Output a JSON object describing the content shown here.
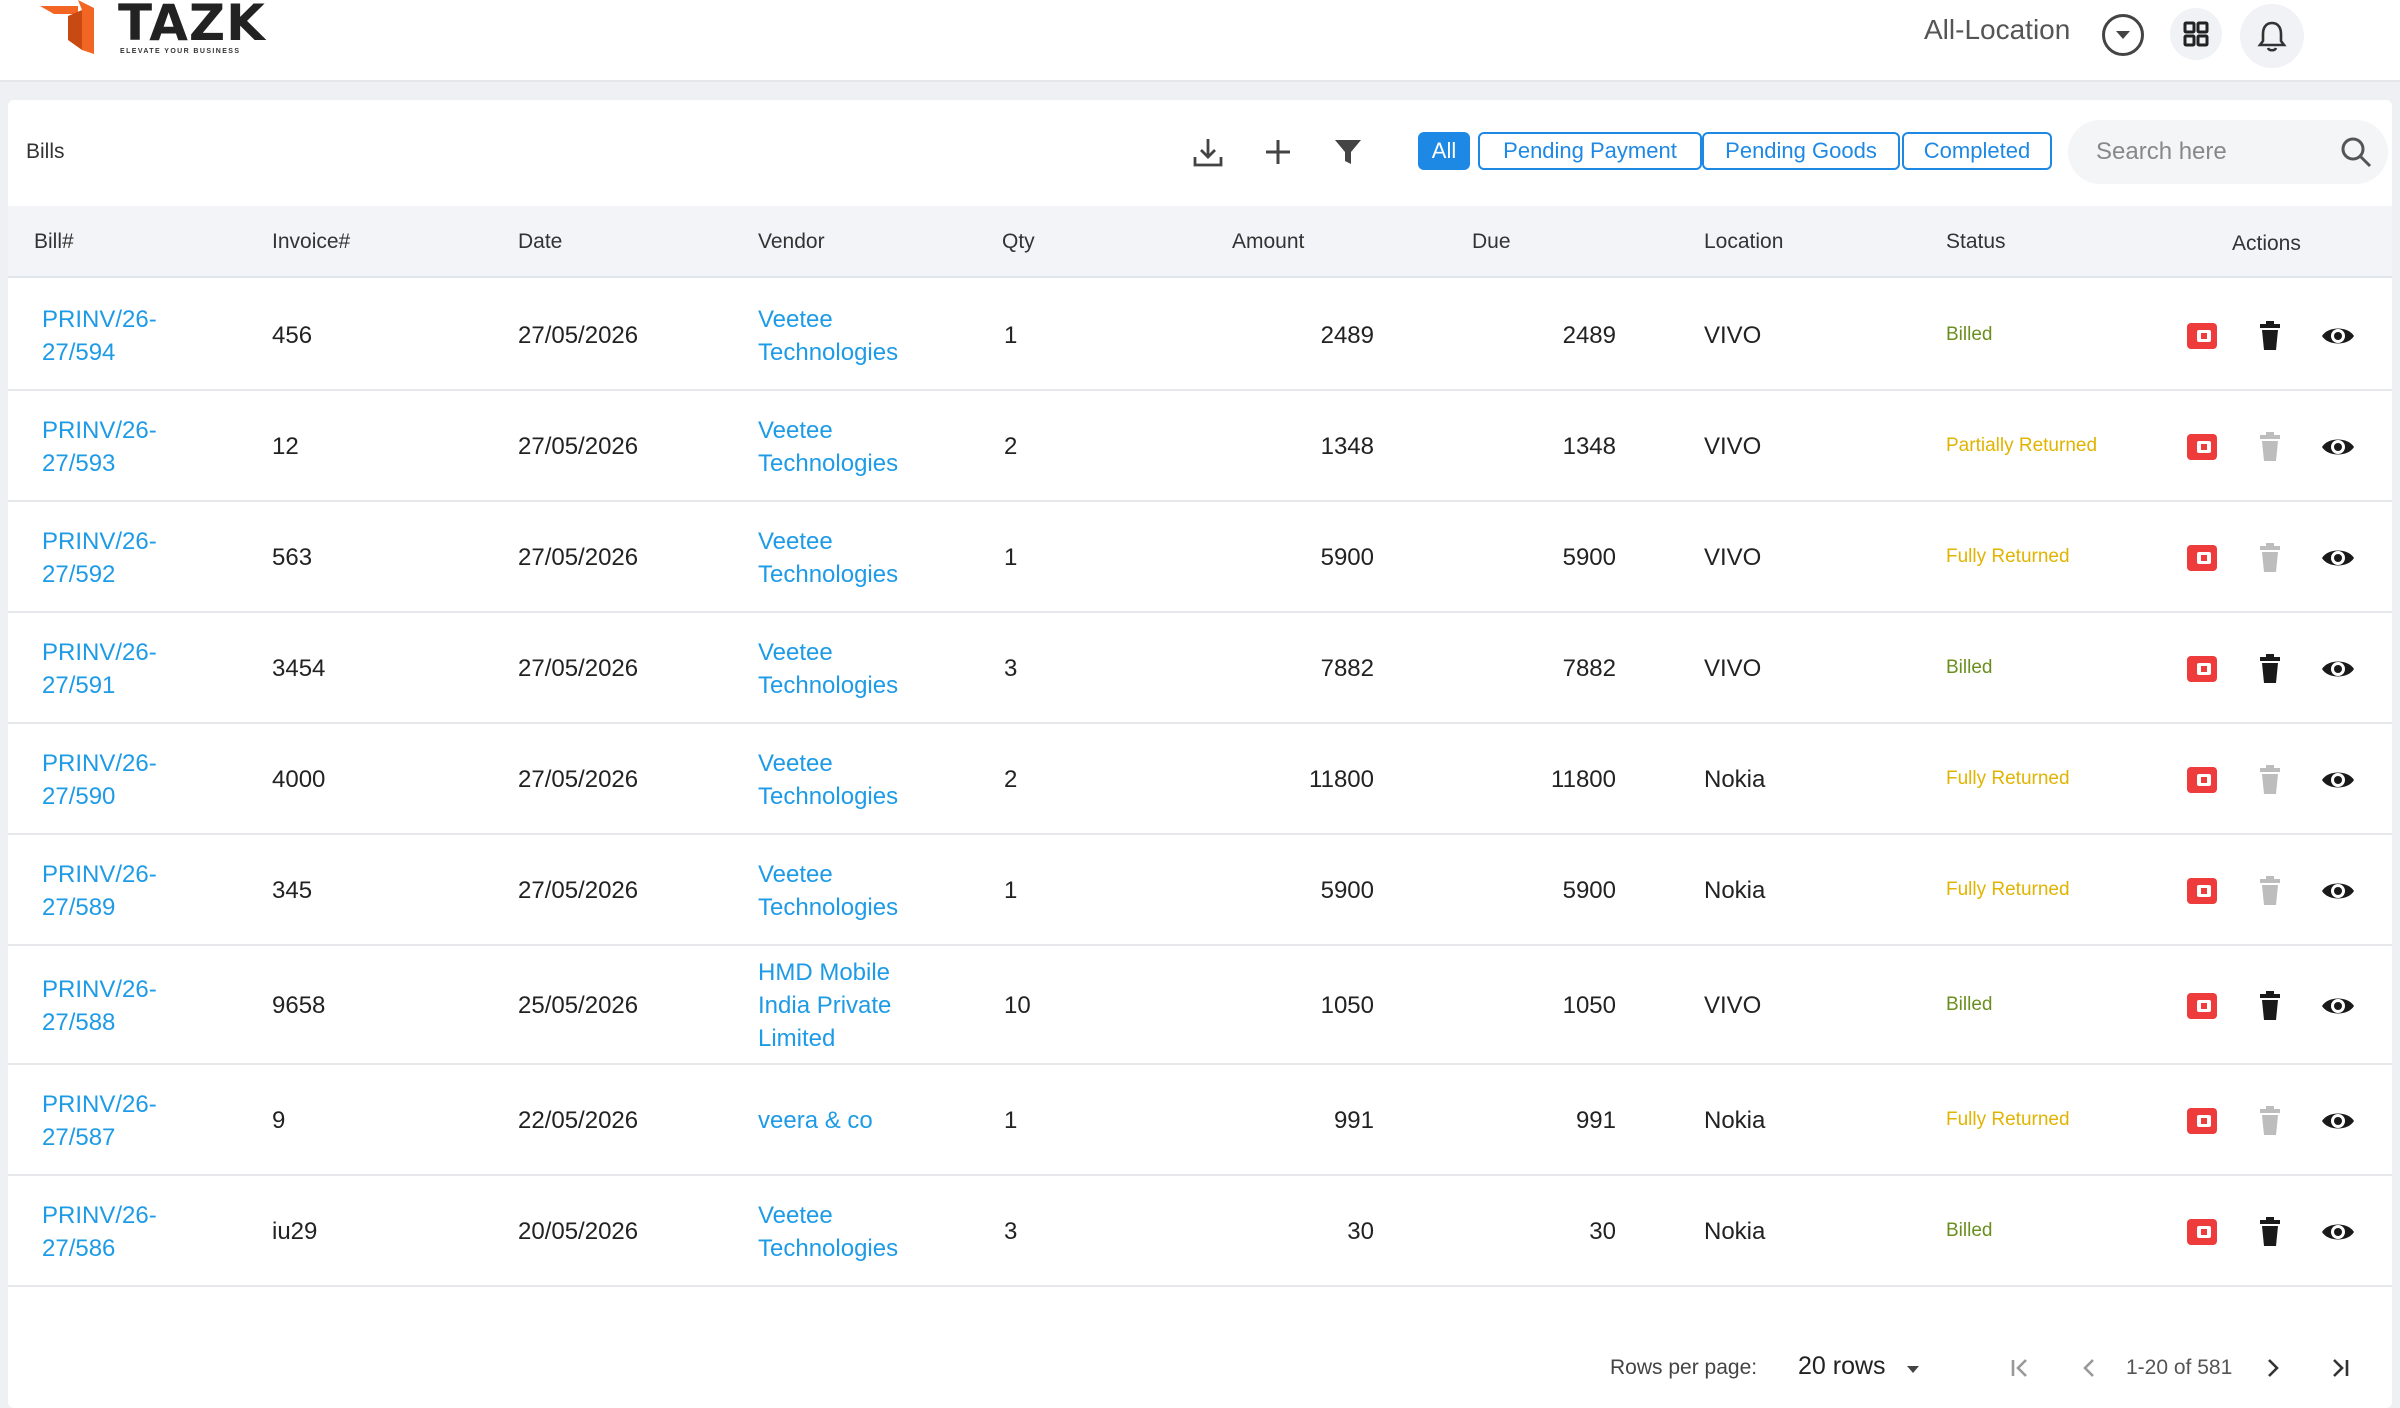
{
  "app": {
    "logo_text": "TAZK",
    "tagline": "ELEVATE YOUR BUSINESS",
    "brand_color": "#f26522"
  },
  "header": {
    "location_label": "All-Location"
  },
  "page": {
    "title": "Bills"
  },
  "filters": {
    "all": "All",
    "pending_payment": "Pending Payment",
    "pending_goods": "Pending Goods",
    "completed": "Completed",
    "active": "All"
  },
  "search": {
    "placeholder": "Search here"
  },
  "table": {
    "columns": [
      "Bill#",
      "Invoice#",
      "Date",
      "Vendor",
      "Qty",
      "Amount",
      "Due",
      "Location",
      "Status",
      "Actions"
    ],
    "rows": [
      {
        "bill_l1": "PRINV/26-",
        "bill_l2": "27/594",
        "invoice": "456",
        "date": "27/05/2026",
        "vendor": [
          "Veetee",
          "Technologies"
        ],
        "qty": "1",
        "amount": "2489",
        "due": "2489",
        "location": "VIVO",
        "status": "Billed",
        "delete_enabled": true
      },
      {
        "bill_l1": "PRINV/26-",
        "bill_l2": "27/593",
        "invoice": "12",
        "date": "27/05/2026",
        "vendor": [
          "Veetee",
          "Technologies"
        ],
        "qty": "2",
        "amount": "1348",
        "due": "1348",
        "location": "VIVO",
        "status": "Partially Returned",
        "delete_enabled": false
      },
      {
        "bill_l1": "PRINV/26-",
        "bill_l2": "27/592",
        "invoice": "563",
        "date": "27/05/2026",
        "vendor": [
          "Veetee",
          "Technologies"
        ],
        "qty": "1",
        "amount": "5900",
        "due": "5900",
        "location": "VIVO",
        "status": "Fully Returned",
        "delete_enabled": false
      },
      {
        "bill_l1": "PRINV/26-",
        "bill_l2": "27/591",
        "invoice": "3454",
        "date": "27/05/2026",
        "vendor": [
          "Veetee",
          "Technologies"
        ],
        "qty": "3",
        "amount": "7882",
        "due": "7882",
        "location": "VIVO",
        "status": "Billed",
        "delete_enabled": true
      },
      {
        "bill_l1": "PRINV/26-",
        "bill_l2": "27/590",
        "invoice": "4000",
        "date": "27/05/2026",
        "vendor": [
          "Veetee",
          "Technologies"
        ],
        "qty": "2",
        "amount": "11800",
        "due": "11800",
        "location": "Nokia",
        "status": "Fully Returned",
        "delete_enabled": false
      },
      {
        "bill_l1": "PRINV/26-",
        "bill_l2": "27/589",
        "invoice": "345",
        "date": "27/05/2026",
        "vendor": [
          "Veetee",
          "Technologies"
        ],
        "qty": "1",
        "amount": "5900",
        "due": "5900",
        "location": "Nokia",
        "status": "Fully Returned",
        "delete_enabled": false
      },
      {
        "bill_l1": "PRINV/26-",
        "bill_l2": "27/588",
        "invoice": "9658",
        "date": "25/05/2026",
        "vendor": [
          "HMD Mobile",
          "India Private",
          "Limited"
        ],
        "qty": "10",
        "amount": "1050",
        "due": "1050",
        "location": "VIVO",
        "status": "Billed",
        "delete_enabled": true
      },
      {
        "bill_l1": "PRINV/26-",
        "bill_l2": "27/587",
        "invoice": "9",
        "date": "22/05/2026",
        "vendor": [
          "veera & co"
        ],
        "qty": "1",
        "amount": "991",
        "due": "991",
        "location": "Nokia",
        "status": "Fully Returned",
        "delete_enabled": false
      },
      {
        "bill_l1": "PRINV/26-",
        "bill_l2": "27/586",
        "invoice": "iu29",
        "date": "20/05/2026",
        "vendor": [
          "Veetee",
          "Technologies"
        ],
        "qty": "3",
        "amount": "30",
        "due": "30",
        "location": "Nokia",
        "status": "Billed",
        "delete_enabled": true
      }
    ]
  },
  "status_colors": {
    "Billed": "#6a8f1f",
    "Partially Returned": "#e0b400",
    "Fully Returned": "#e0b400"
  },
  "pagination": {
    "rows_per_page_label": "Rows per page:",
    "rows_per_page_value": "20 rows",
    "range": "1-20 of 581"
  },
  "icons": {
    "toolbar": [
      "download-icon",
      "plus-icon",
      "filter-icon"
    ],
    "row_actions": [
      "return-icon",
      "trash-icon",
      "eye-icon"
    ]
  }
}
